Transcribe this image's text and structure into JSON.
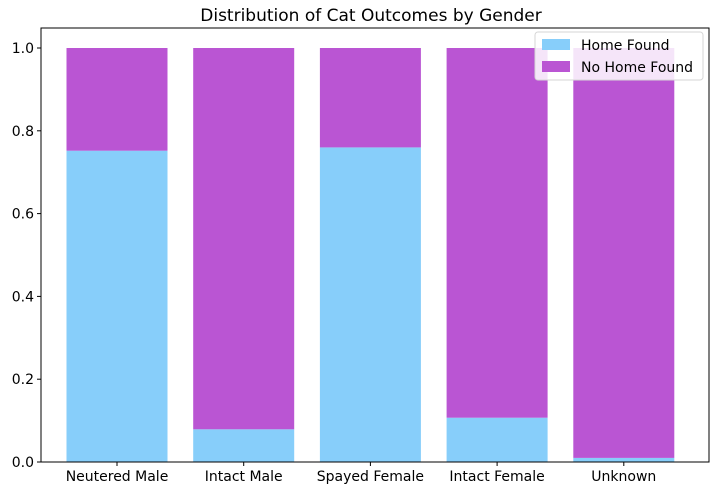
{
  "chart_data": {
    "type": "bar",
    "stacked": true,
    "title": "Distribution of Cat Outcomes by Gender",
    "xlabel": "",
    "ylabel": "",
    "categories": [
      "Neutered Male",
      "Intact Male",
      "Spayed Female",
      "Intact Female",
      "Unknown"
    ],
    "series": [
      {
        "name": "Home Found",
        "color": "#87CEFA",
        "values": [
          0.752,
          0.079,
          0.76,
          0.107,
          0.01
        ]
      },
      {
        "name": "No Home Found",
        "color": "#BA55D3",
        "values": [
          0.248,
          0.921,
          0.24,
          0.893,
          0.99
        ]
      }
    ],
    "ylim": [
      0,
      1.0
    ],
    "yticks": [
      "0.0",
      "0.2",
      "0.4",
      "0.6",
      "0.8",
      "1.0"
    ],
    "ytick_values": [
      0,
      0.2,
      0.4,
      0.6,
      0.8,
      1.0
    ],
    "legend_position": "top-right",
    "grid": false
  }
}
